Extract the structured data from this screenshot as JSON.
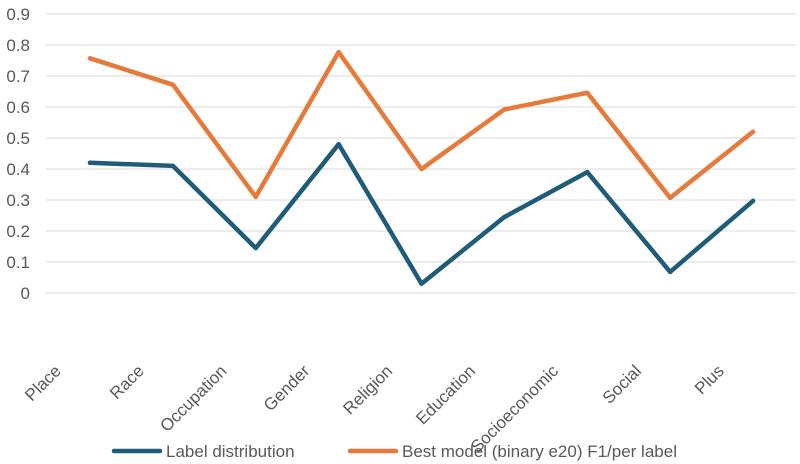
{
  "chart_data": {
    "type": "line",
    "title": "",
    "xlabel": "",
    "ylabel": "",
    "categories": [
      "Place",
      "Race",
      "Occupation",
      "Gender",
      "Religion",
      "Education",
      "Socioeconomic",
      "Social",
      "Plus"
    ],
    "ylim": [
      0,
      0.9
    ],
    "yticks": [
      "0",
      "0.1",
      "0.2",
      "0.3",
      "0.4",
      "0.5",
      "0.6",
      "0.7",
      "0.8",
      "0.9"
    ],
    "grid": true,
    "legend_position": "bottom",
    "series": [
      {
        "name": "Label distribution",
        "color": "#1f5c7a",
        "values": [
          0.42,
          0.41,
          0.145,
          0.48,
          0.03,
          0.245,
          0.39,
          0.068,
          0.297
        ]
      },
      {
        "name": "Best model (binary e20) F1/per label",
        "color": "#e67a3a",
        "values": [
          0.757,
          0.672,
          0.31,
          0.777,
          0.4,
          0.592,
          0.646,
          0.307,
          0.52
        ]
      }
    ]
  }
}
